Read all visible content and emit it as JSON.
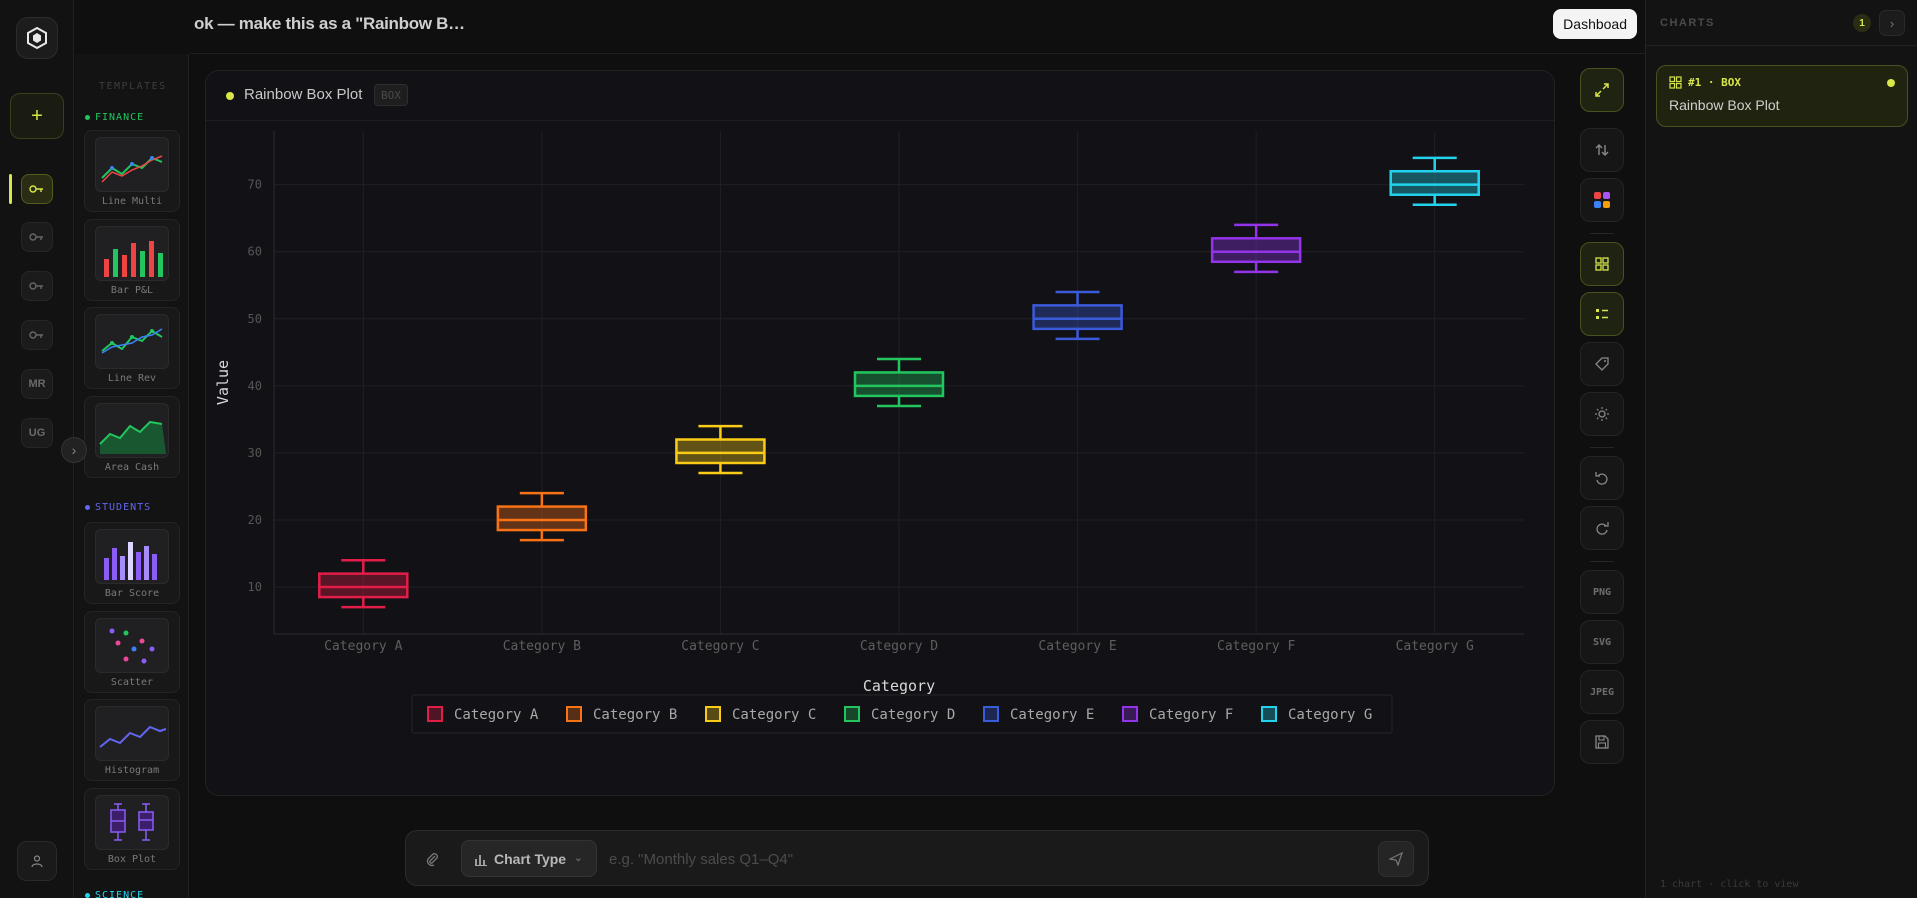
{
  "header": {
    "conversation_title": "ok — make this as a \"Rainbow B…",
    "dashboard_label": "Dashboad"
  },
  "rail": {
    "items": [
      {
        "label": "",
        "icon": "key-icon",
        "active": true
      },
      {
        "label": "",
        "icon": "key-icon",
        "active": false
      },
      {
        "label": "",
        "icon": "key-icon",
        "active": false
      },
      {
        "label": "",
        "icon": "key-icon",
        "active": false
      },
      {
        "label": "MR",
        "icon": "",
        "active": false
      },
      {
        "label": "UG",
        "icon": "",
        "active": false
      }
    ]
  },
  "templates": {
    "heading": "TEMPLATES",
    "groups": [
      {
        "name": "FINANCE",
        "color": "#22c55e"
      },
      {
        "name": "STUDENTS",
        "color": "#6366f1"
      },
      {
        "name": "SCIENCE",
        "color": "#22d3ee"
      }
    ],
    "cards": [
      "Line Multi",
      "Bar P&L",
      "Line Rev",
      "Area Cash",
      "Bar Score",
      "Scatter",
      "Histogram",
      "Box Plot"
    ]
  },
  "chart_card": {
    "name": "Rainbow Box Plot",
    "badge": "BOX"
  },
  "chart_data": {
    "type": "box",
    "title": "",
    "xlabel": "Category",
    "ylabel": "Value",
    "ylim": [
      3,
      78
    ],
    "yticks": [
      10,
      20,
      30,
      40,
      50,
      60,
      70
    ],
    "grid": true,
    "legend_position": "bottom-center",
    "categories": [
      "Category A",
      "Category B",
      "Category C",
      "Category D",
      "Category E",
      "Category F",
      "Category G"
    ],
    "colors": [
      "#e11d48",
      "#f97316",
      "#facc15",
      "#22c55e",
      "#3b5bdb",
      "#9333ea",
      "#22d3ee"
    ],
    "boxes": [
      {
        "min": 7,
        "q1": 8.5,
        "median": 10,
        "q3": 12,
        "max": 14
      },
      {
        "min": 17,
        "q1": 18.5,
        "median": 20,
        "q3": 22,
        "max": 24
      },
      {
        "min": 27,
        "q1": 28.5,
        "median": 30,
        "q3": 32,
        "max": 34
      },
      {
        "min": 37,
        "q1": 38.5,
        "median": 40,
        "q3": 42,
        "max": 44
      },
      {
        "min": 47,
        "q1": 48.5,
        "median": 50,
        "q3": 52,
        "max": 54
      },
      {
        "min": 57,
        "q1": 58.5,
        "median": 60,
        "q3": 62,
        "max": 64
      },
      {
        "min": 67,
        "q1": 68.5,
        "median": 70,
        "q3": 72,
        "max": 74
      }
    ]
  },
  "toolbar": {
    "png_label": "PNG",
    "svg_label": "SVG",
    "jpeg_label": "JPEG"
  },
  "right_panel": {
    "heading": "CHARTS",
    "count": "1",
    "item_tag": "#1 · BOX",
    "item_name": "Rainbow Box Plot",
    "footer": "1 chart · click to view"
  },
  "input": {
    "chart_type_label": "Chart Type",
    "placeholder": "e.g. \"Monthly sales Q1–Q4\""
  }
}
